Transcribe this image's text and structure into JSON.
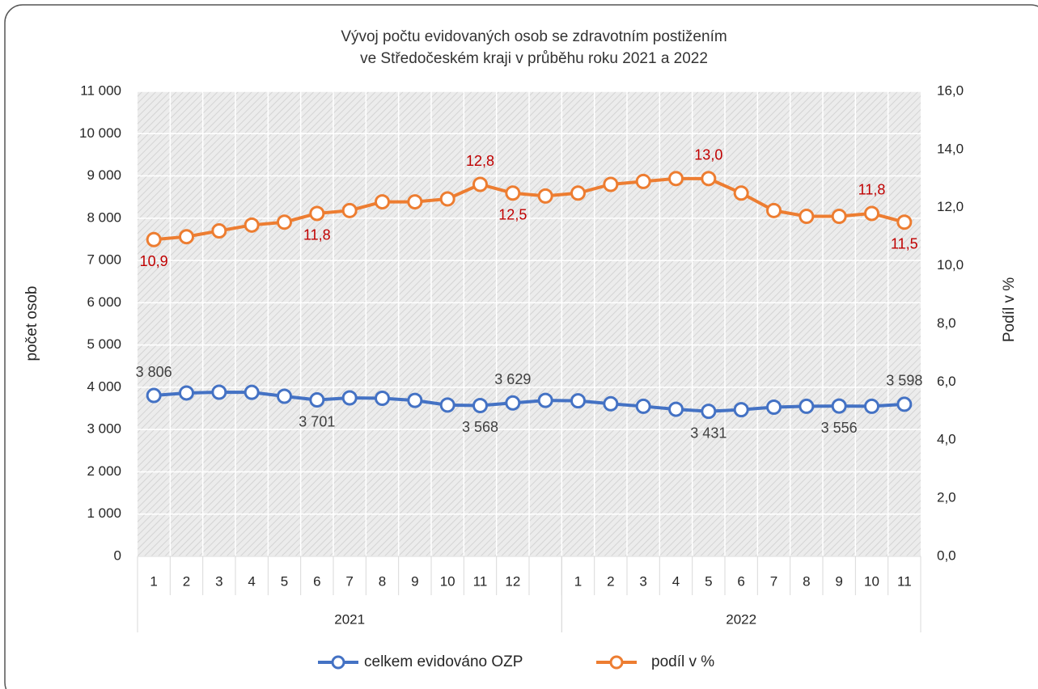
{
  "chart_data": {
    "type": "line",
    "title": [
      "Vývoj počtu evidovaných osob se zdravotním postižením",
      "ve Středočeském kraji v průběhu roku 2021 a 2022"
    ],
    "y_label": "počet osob",
    "y2_label": "Podíl v %",
    "categories": [
      "1",
      "2",
      "3",
      "4",
      "5",
      "6",
      "7",
      "8",
      "9",
      "10",
      "11",
      "12",
      null,
      "1",
      "2",
      "3",
      "4",
      "5",
      "6",
      "7",
      "8",
      "9",
      "10",
      "11"
    ],
    "groups": [
      {
        "name": "2021",
        "count": 13
      },
      {
        "name": "2022",
        "count": 11
      }
    ],
    "ylim": [
      0,
      11000
    ],
    "yticks": [
      0,
      {
        "value": 1000,
        "label": "1 000"
      },
      {
        "value": 2000,
        "label": "2 000"
      },
      {
        "value": 3000,
        "label": "3 000"
      },
      {
        "value": 4000,
        "label": "4 000"
      },
      {
        "value": 5000,
        "label": "5 000"
      },
      {
        "value": 6000,
        "label": "6 000"
      },
      {
        "value": 7000,
        "label": "7 000"
      },
      {
        "value": 8000,
        "label": "8 000"
      },
      {
        "value": 9000,
        "label": "9 000"
      },
      {
        "value": 10000,
        "label": "10 000"
      },
      {
        "value": 11000,
        "label": "11 000"
      }
    ],
    "y2lim": [
      0,
      16
    ],
    "y2ticks": [
      {
        "value": 0,
        "label": "0,0"
      },
      {
        "value": 2,
        "label": "2,0"
      },
      {
        "value": 4,
        "label": "4,0"
      },
      {
        "value": 6,
        "label": "6,0"
      },
      {
        "value": 8,
        "label": "8,0"
      },
      {
        "value": 10,
        "label": "10,0"
      },
      {
        "value": 12,
        "label": "12,0"
      },
      {
        "value": 14,
        "label": "14,0"
      },
      {
        "value": 16,
        "label": "16,0"
      }
    ],
    "grid": true,
    "legend": "bottom",
    "series": [
      {
        "name": "celkem evidováno OZP",
        "color": "#4472c4",
        "label_color": "#404040",
        "values": [
          3806,
          3865,
          3884,
          3880,
          3788,
          3701,
          3750,
          3740,
          3690,
          3580,
          3568,
          3629,
          3690,
          3680,
          3610,
          3550,
          3480,
          3431,
          3470,
          3530,
          3550,
          3556,
          3550,
          3598
        ],
        "value_labels": [
          "3 806",
          null,
          null,
          null,
          null,
          "3 701",
          null,
          null,
          null,
          null,
          "3 568",
          "3 629",
          null,
          null,
          null,
          null,
          null,
          "3 431",
          null,
          null,
          null,
          "3 556",
          null,
          "3 598"
        ]
      },
      {
        "name": "podíl v %",
        "color": "#ed7d31",
        "label_color": "#c00000",
        "axis": "y2",
        "values": [
          10.9,
          11.0,
          11.2,
          11.4,
          11.5,
          11.8,
          11.9,
          12.2,
          12.2,
          12.3,
          12.8,
          12.5,
          12.4,
          12.5,
          12.8,
          12.9,
          13.0,
          13.0,
          12.5,
          11.9,
          11.7,
          11.7,
          11.8,
          11.5
        ],
        "value_labels": [
          "10,9",
          null,
          null,
          null,
          null,
          "11,8",
          null,
          null,
          null,
          null,
          "12,8",
          "12,5",
          null,
          null,
          null,
          null,
          null,
          "13,0",
          null,
          null,
          null,
          null,
          "11,8",
          "11,5"
        ]
      }
    ]
  }
}
